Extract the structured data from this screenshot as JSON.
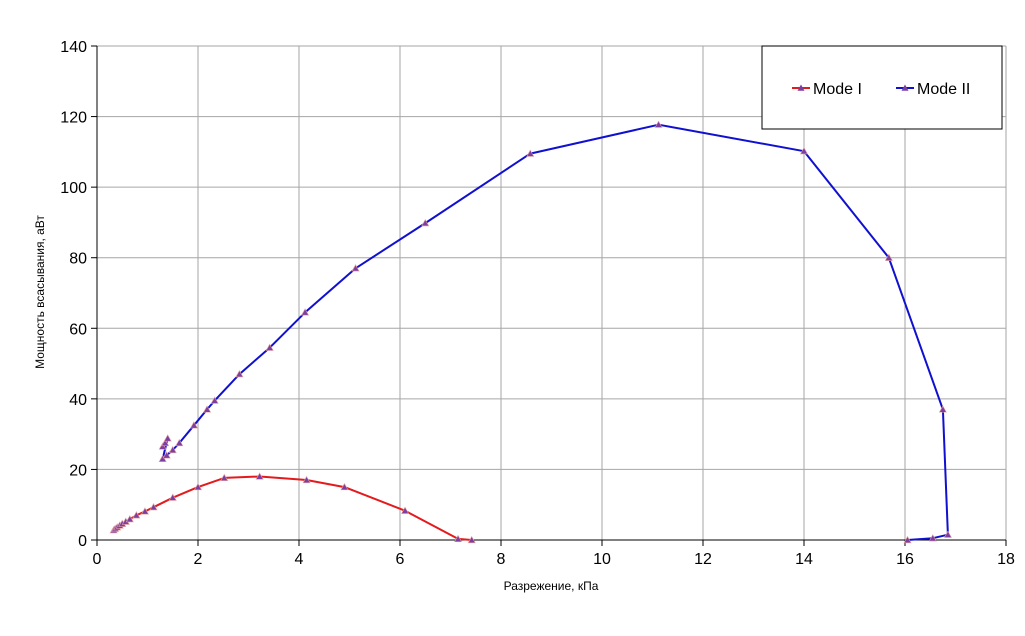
{
  "chart_data": {
    "type": "line",
    "xlabel": "Разрежение, кПа",
    "ylabel": "Мощность всасывания, аВт",
    "xlim": [
      0,
      18
    ],
    "ylim": [
      0,
      140
    ],
    "xticks": [
      0,
      2,
      4,
      6,
      8,
      10,
      12,
      14,
      16,
      18
    ],
    "yticks": [
      0,
      20,
      40,
      60,
      80,
      100,
      120,
      140
    ],
    "grid": true,
    "legend_position": "top-right",
    "series": [
      {
        "name": "Mode I",
        "color": "#e41a1c",
        "marker_color": "#7b3fa0",
        "marker": "triangle",
        "x": [
          0.33,
          0.36,
          0.4,
          0.45,
          0.5,
          0.57,
          0.65,
          0.78,
          0.95,
          1.12,
          1.5,
          2.0,
          2.52,
          3.22,
          4.15,
          4.9,
          6.1,
          7.15,
          7.42
        ],
        "y": [
          2.8,
          3.2,
          3.6,
          4.1,
          4.6,
          5.2,
          5.9,
          7.0,
          8.1,
          9.3,
          12.0,
          15.0,
          17.6,
          18.0,
          17.0,
          15.0,
          8.3,
          0.3,
          0.0
        ]
      },
      {
        "name": "Mode II",
        "color": "#1010d0",
        "marker_color": "#7b3fa0",
        "marker": "triangle",
        "x": [
          1.3,
          1.35,
          1.4,
          1.3,
          1.38,
          1.5,
          1.63,
          1.92,
          2.18,
          2.33,
          2.82,
          3.42,
          4.12,
          5.12,
          6.5,
          8.58,
          11.12,
          14.0,
          15.68,
          16.75,
          16.85,
          16.55,
          16.05
        ],
        "y": [
          26.5,
          27.5,
          28.8,
          23.0,
          24.0,
          25.5,
          27.5,
          32.5,
          37.0,
          39.5,
          47.0,
          54.5,
          64.5,
          77.0,
          89.8,
          109.5,
          117.7,
          110.2,
          80.0,
          37.0,
          1.5,
          0.5,
          0.0
        ]
      }
    ]
  }
}
